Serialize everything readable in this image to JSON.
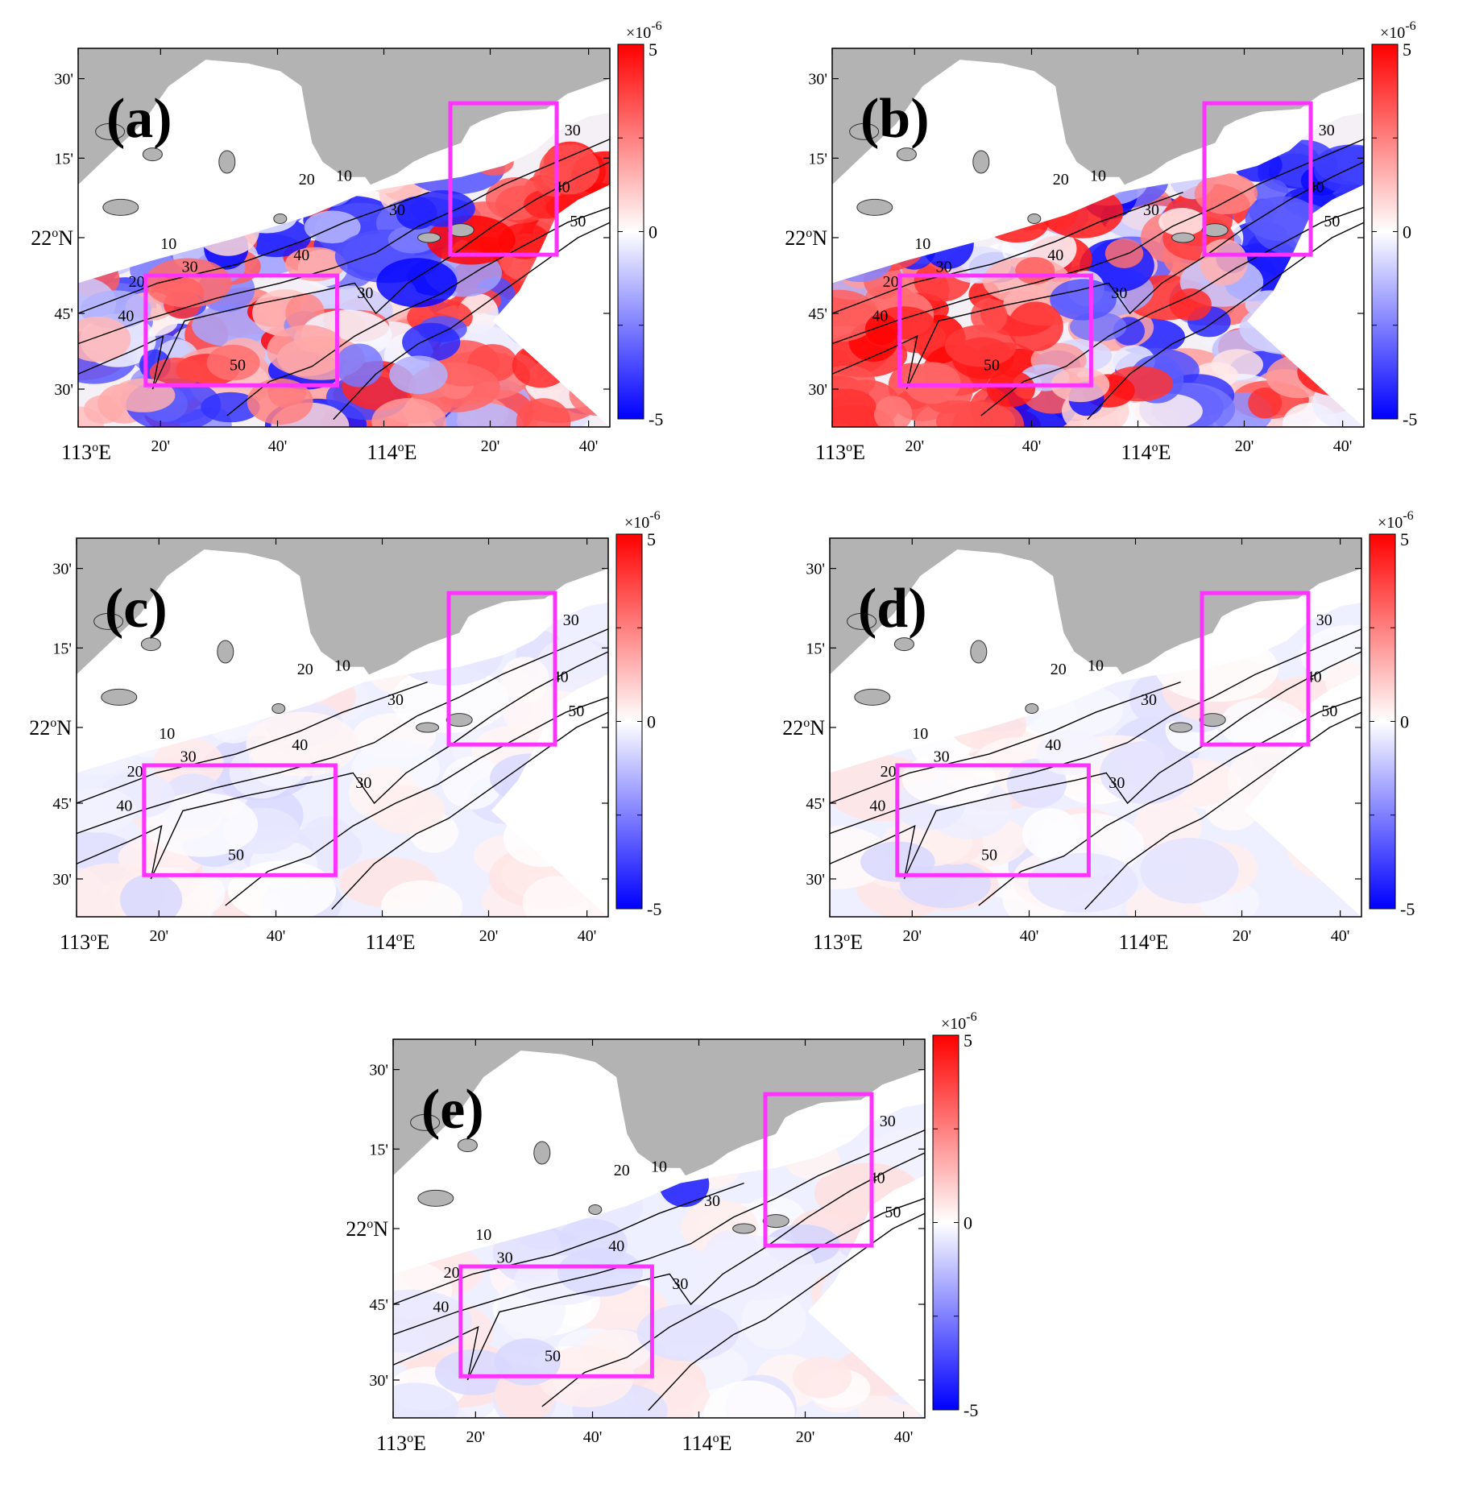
{
  "figure": {
    "panels": [
      {
        "id": "a",
        "label": "(a)",
        "pattern": "strong-a"
      },
      {
        "id": "b",
        "label": "(b)",
        "pattern": "strong-b"
      },
      {
        "id": "c",
        "label": "(c)",
        "pattern": "weak"
      },
      {
        "id": "d",
        "label": "(d)",
        "pattern": "weak"
      },
      {
        "id": "e",
        "label": "(e)",
        "pattern": "weak-e"
      }
    ],
    "x_ticks": [
      {
        "deg": "113",
        "sup": "o",
        "hem": "E",
        "kind": "major"
      },
      {
        "text": "20'",
        "kind": "minor"
      },
      {
        "text": "40'",
        "kind": "minor"
      },
      {
        "deg": "114",
        "sup": "o",
        "hem": "E",
        "kind": "major"
      },
      {
        "text": "20'",
        "kind": "minor"
      },
      {
        "text": "40'",
        "kind": "minor"
      }
    ],
    "y_ticks": [
      {
        "text": "30'"
      },
      {
        "text": "15'"
      },
      {
        "deg": "22",
        "sup": "o",
        "hem": "N"
      },
      {
        "text": "45'"
      },
      {
        "text": "30'"
      }
    ],
    "contour_labels": [
      "10",
      "20",
      "30",
      "40",
      "50",
      "30",
      "40",
      "30",
      "20",
      "10",
      "30",
      "40",
      "50"
    ],
    "colorbar": {
      "top_label": "5",
      "mid_label": "0",
      "bottom_label": "-5",
      "multiplier_base": "×10",
      "multiplier_exp": "-6",
      "colors": [
        "#0000ff",
        "#ffffff",
        "#ff0000"
      ]
    },
    "land_color": "#b3b3b3",
    "box_color": "#ff33ff"
  }
}
